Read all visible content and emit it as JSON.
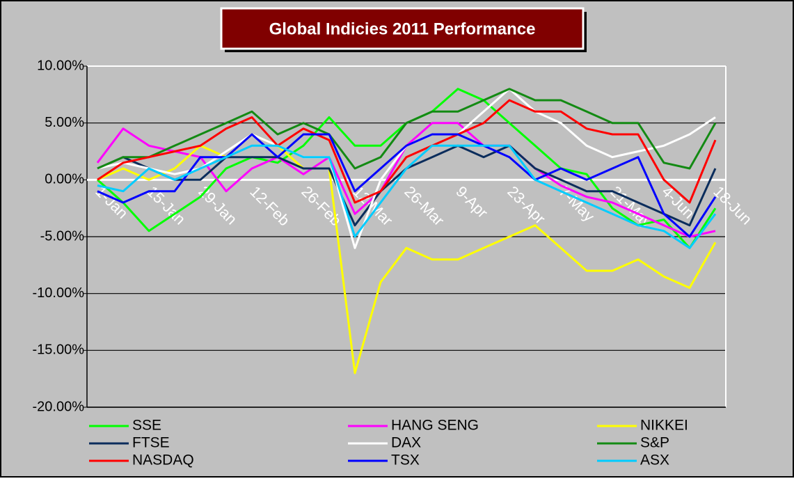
{
  "chart_data": {
    "type": "line",
    "title": "Global Indicies 2011 Performance",
    "categories": [
      "1-Jan",
      null,
      "15-Jan",
      null,
      "29-Jan",
      null,
      "12-Feb",
      null,
      "26-Feb",
      null,
      "12-Mar",
      null,
      "26-Mar",
      null,
      "9-Apr",
      null,
      "23-Apr",
      null,
      "7-May",
      null,
      "21-May",
      null,
      "4-Jun",
      null,
      "18-Jun"
    ],
    "ylim": [
      -20,
      10
    ],
    "yticks": [
      {
        "value": -20,
        "label": "-20.00%"
      },
      {
        "value": -15,
        "label": "-15.00%"
      },
      {
        "value": -10,
        "label": "-10.00%"
      },
      {
        "value": -5,
        "label": "-5.00%"
      },
      {
        "value": 0,
        "label": "0.00%"
      },
      {
        "value": 5,
        "label": "5.00%"
      },
      {
        "value": 10,
        "label": "10.00%"
      }
    ],
    "grid": true,
    "legend": "bottom",
    "series": [
      {
        "name": "SSE",
        "color": "#00ff00",
        "values": [
          0,
          -2,
          -4.5,
          -3,
          -1.5,
          1,
          2,
          1.5,
          3,
          5.5,
          3,
          3,
          5,
          6,
          8,
          7,
          5,
          3,
          1,
          0.5,
          -2.5,
          -4,
          -3.5,
          -6,
          -2.5
        ]
      },
      {
        "name": "HANG SENG",
        "color": "#ff00ff",
        "values": [
          1.5,
          4.5,
          3,
          2.5,
          2,
          -1,
          1,
          2,
          0.5,
          2,
          -3,
          -1,
          3,
          5,
          5,
          3,
          3,
          1,
          -0.5,
          -1.5,
          -2,
          -3,
          -4,
          -5,
          -4.5
        ]
      },
      {
        "name": "NIKKEI",
        "color": "#ffff00",
        "values": [
          0,
          1,
          0,
          1,
          3,
          2,
          4,
          3,
          1,
          1,
          -17,
          -9,
          -6,
          -7,
          -7,
          -6,
          -5,
          -4,
          -6,
          -8,
          -8,
          -7,
          -8.5,
          -9.5,
          -5.5
        ]
      },
      {
        "name": "FTSE",
        "color": "#0b2d5c",
        "values": [
          1,
          2,
          1,
          0,
          0,
          2,
          2,
          2,
          1,
          1,
          -4,
          -1,
          1,
          2,
          3,
          2,
          3,
          1,
          0,
          -1,
          -1,
          -2,
          -3,
          -4,
          1
        ]
      },
      {
        "name": "DAX",
        "color": "#ffffff",
        "values": [
          1,
          1.5,
          1,
          0.5,
          1,
          2.5,
          4,
          3,
          2,
          2,
          -6,
          0,
          3,
          4,
          4,
          6,
          8,
          6,
          5,
          3,
          2,
          2.5,
          3,
          4,
          5.5
        ]
      },
      {
        "name": "S&P",
        "color": "#138a13",
        "values": [
          1,
          2,
          2,
          3,
          4,
          5,
          6,
          4,
          5,
          4,
          1,
          2,
          5,
          6,
          6,
          7,
          8,
          7,
          7,
          6,
          5,
          5,
          1.5,
          1,
          5
        ]
      },
      {
        "name": "NASDAQ",
        "color": "#ff0000",
        "values": [
          0,
          1.5,
          2,
          2.5,
          3,
          4.5,
          5.5,
          3,
          4.5,
          3.5,
          -2,
          -1,
          2,
          3,
          4,
          5,
          7,
          6,
          6,
          4.5,
          4,
          4,
          0,
          -2,
          3.5
        ]
      },
      {
        "name": "TSX",
        "color": "#0000ff",
        "values": [
          -1,
          -2,
          -1,
          -1,
          2,
          2,
          4,
          2,
          4,
          4,
          -1,
          1,
          3,
          4,
          4,
          3,
          2,
          0,
          1,
          0,
          1,
          2,
          -3,
          -5,
          -1.5
        ]
      },
      {
        "name": "ASX",
        "color": "#00ccff",
        "values": [
          -0.5,
          -1,
          1,
          0,
          1,
          2,
          3,
          3,
          2,
          2,
          -5,
          -2,
          1,
          3,
          3,
          3,
          3,
          0,
          -1,
          -2,
          -3,
          -4,
          -4.5,
          -6,
          -3
        ]
      }
    ]
  }
}
